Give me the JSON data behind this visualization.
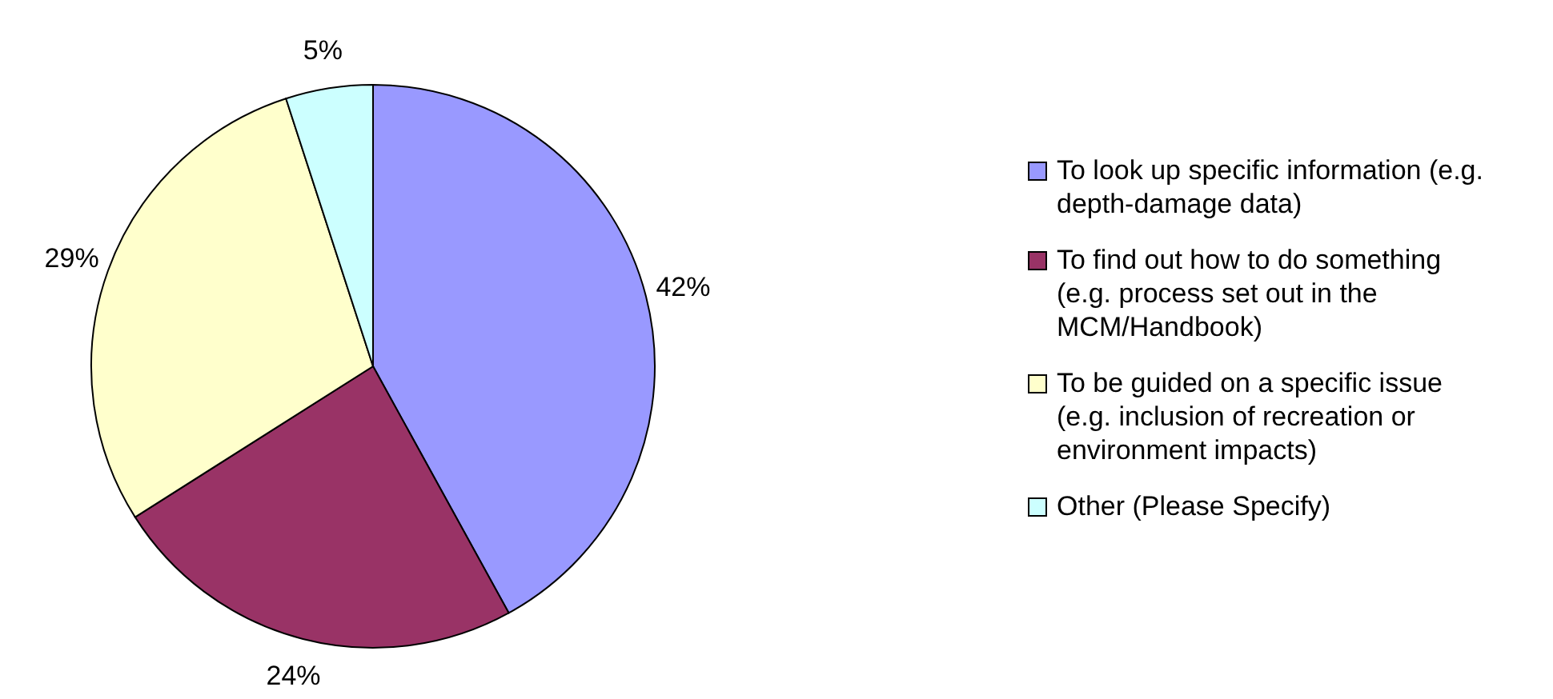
{
  "chart_data": {
    "type": "pie",
    "categories": [
      "To look up specific information (e.g. depth-damage data)",
      "To find out how  to do something (e.g. process set out in the MCM/Handbook)",
      "To be guided on a specific issue (e.g. inclusion of recreation or environment impacts)",
      "Other (Please Specify)"
    ],
    "values": [
      42,
      24,
      29,
      5
    ],
    "value_labels": [
      "42%",
      "24%",
      "29%",
      "5%"
    ],
    "colors": [
      "#9999ff",
      "#993366",
      "#ffffcc",
      "#ccffff"
    ],
    "legend": "right"
  }
}
